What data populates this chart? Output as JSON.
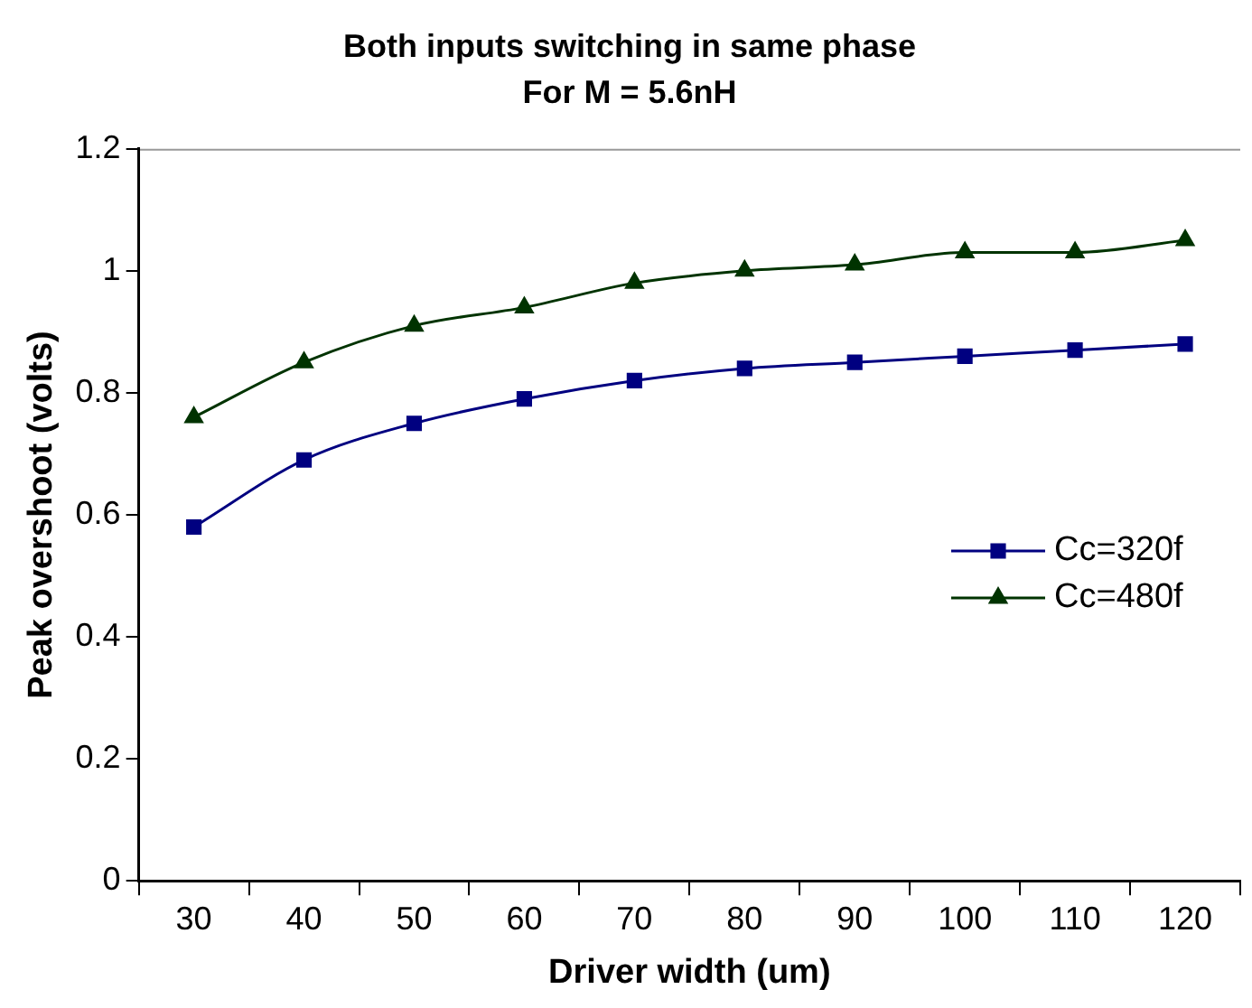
{
  "chart_data": {
    "type": "line",
    "title": "Both inputs switching in same phase\nFor M = 5.6nH",
    "xlabel": "Driver width (um)",
    "ylabel": "Peak overshoot (volts)",
    "categories": [
      "30",
      "40",
      "50",
      "60",
      "70",
      "80",
      "90",
      "100",
      "110",
      "120"
    ],
    "series": [
      {
        "name": "Cc=320f",
        "color": "#000080",
        "marker": "square",
        "values": [
          0.58,
          0.69,
          0.75,
          0.79,
          0.82,
          0.84,
          0.85,
          0.86,
          0.87,
          0.88
        ]
      },
      {
        "name": "Cc=480f",
        "color": "#003300",
        "marker": "triangle",
        "values": [
          0.76,
          0.85,
          0.91,
          0.94,
          0.98,
          1.0,
          1.01,
          1.03,
          1.03,
          1.05
        ]
      }
    ],
    "ylim": [
      0,
      1.2
    ],
    "yticks": [
      0,
      0.2,
      0.4,
      0.6,
      0.8,
      1,
      1.2
    ],
    "grid": false,
    "legend": "right",
    "line_style": "solid"
  }
}
